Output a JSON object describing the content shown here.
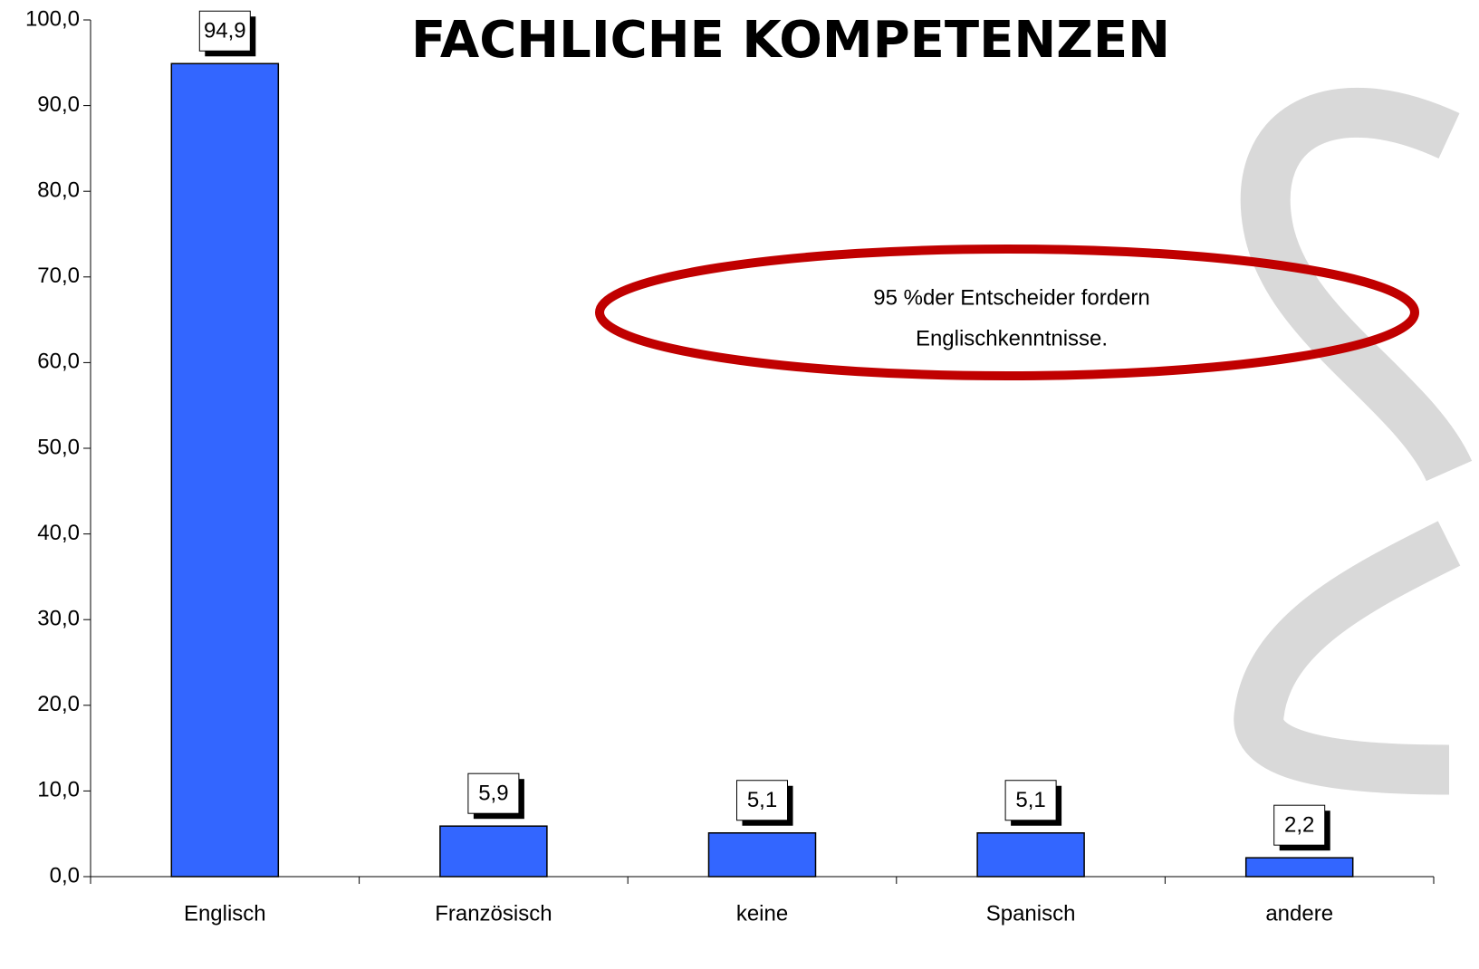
{
  "chart_data": {
    "type": "bar",
    "title": "FACHLICHE KOMPETENZEN",
    "categories": [
      "Englisch",
      "Französisch",
      "keine",
      "Spanisch",
      "andere"
    ],
    "values": [
      94.9,
      5.9,
      5.1,
      5.1,
      2.2
    ],
    "value_labels": [
      "94,9",
      "5,9",
      "5,1",
      "5,1",
      "2,2"
    ],
    "color": "#3366ff",
    "ylim": [
      0,
      100
    ],
    "yticks": [
      {
        "value": 0,
        "label": "0,0"
      },
      {
        "value": 10,
        "label": "10,0"
      },
      {
        "value": 20,
        "label": "20,0"
      },
      {
        "value": 30,
        "label": "30,0"
      },
      {
        "value": 40,
        "label": "40,0"
      },
      {
        "value": 50,
        "label": "50,0"
      },
      {
        "value": 60,
        "label": "60,0"
      },
      {
        "value": 70,
        "label": "70,0"
      },
      {
        "value": 80,
        "label": "80,0"
      },
      {
        "value": 90,
        "label": "90,0"
      },
      {
        "value": 100,
        "label": "100,0"
      }
    ],
    "grid": false,
    "annotation": [
      "95 %der Entscheider fordern",
      "Englischkenntnisse."
    ]
  }
}
